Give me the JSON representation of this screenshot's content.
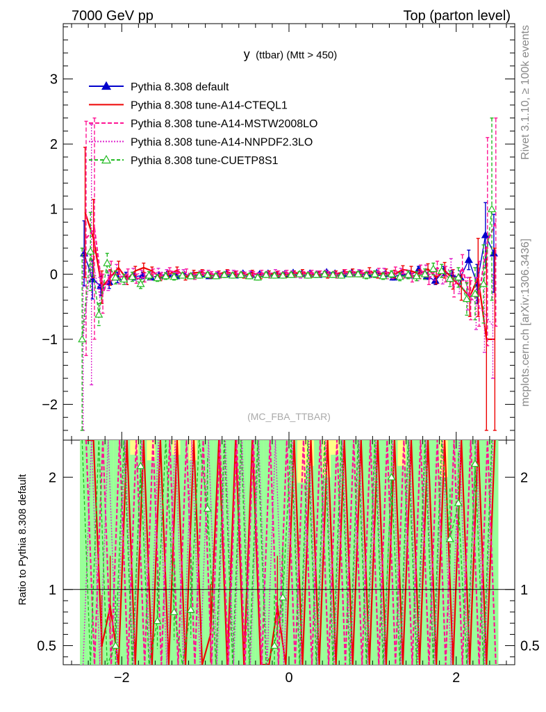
{
  "header": {
    "left": "7000 GeV pp",
    "right": "Top (parton level)"
  },
  "side_labels": {
    "rivet": "Rivet 3.1.10, ≥ 100k events",
    "mcplots": "mcplots.cern.ch [arXiv:1306.3436]"
  },
  "chart_data": [
    {
      "type": "line",
      "title": "y (ttbar) (Mtt > 450)",
      "title_main": "y",
      "title_sub": "(ttbar) (Mtt > 450)",
      "watermark": "(MC_FBA_TTBAR)",
      "xlim": [
        -2.7,
        2.7
      ],
      "ylim": [
        -2.55,
        3.85
      ],
      "x_ticks": [
        -2,
        0,
        2
      ],
      "x_tick_labels": [
        "−2",
        "0",
        "2"
      ],
      "y_ticks": [
        -2,
        -1,
        0,
        1,
        2,
        3
      ],
      "y_tick_labels": [
        "−2",
        "−1",
        "0",
        "1",
        "2",
        "3"
      ],
      "legend": {
        "position": "top-left",
        "entries": [
          {
            "label": "Pythia 8.308 default",
            "color": "#0000cc",
            "dash": "",
            "marker": "triangle-filled"
          },
          {
            "label": "Pythia 8.308 tune-A14-CTEQL1",
            "color": "#ee0000",
            "dash": "",
            "marker": "none"
          },
          {
            "label": "Pythia 8.308 tune-A14-MSTW2008LO",
            "color": "#ff1493",
            "dash": "6,3",
            "marker": "none"
          },
          {
            "label": "Pythia 8.308 tune-A14-NNPDF2.3LO",
            "color": "#dd22cc",
            "dash": "2,2",
            "marker": "none"
          },
          {
            "label": "Pythia 8.308 tune-CUETP8S1",
            "color": "#22bb22",
            "dash": "5,3",
            "marker": "triangle-open"
          }
        ]
      },
      "x": [
        -2.45,
        -2.35,
        -2.25,
        -2.15,
        -2.05,
        -1.95,
        -1.85,
        -1.75,
        -1.65,
        -1.55,
        -1.45,
        -1.35,
        -1.25,
        -1.15,
        -1.05,
        -0.95,
        -0.85,
        -0.75,
        -0.65,
        -0.55,
        -0.45,
        -0.35,
        -0.25,
        -0.15,
        -0.05,
        0.05,
        0.15,
        0.25,
        0.35,
        0.45,
        0.55,
        0.65,
        0.75,
        0.85,
        0.95,
        1.05,
        1.15,
        1.25,
        1.35,
        1.45,
        1.55,
        1.65,
        1.75,
        1.85,
        1.95,
        2.05,
        2.15,
        2.25,
        2.35,
        2.45
      ],
      "series": [
        {
          "name": "Pythia 8.308 default",
          "color": "#0000cc",
          "values": [
            0.32,
            -0.08,
            -0.18,
            -0.12,
            -0.05,
            -0.03,
            -0.04,
            -0.02,
            -0.05,
            -0.02,
            0.0,
            -0.03,
            -0.01,
            -0.02,
            0.0,
            -0.03,
            -0.01,
            0.0,
            -0.02,
            0.01,
            -0.01,
            0.0,
            0.01,
            -0.02,
            0.0,
            0.02,
            0.0,
            0.01,
            -0.01,
            0.03,
            0.01,
            0.0,
            0.02,
            0.01,
            -0.01,
            0.02,
            0.0,
            -0.05,
            0.01,
            -0.02,
            0.07,
            -0.03,
            -0.1,
            0.05,
            -0.02,
            -0.05,
            0.22,
            -0.15,
            0.6,
            0.32
          ],
          "errors": [
            0.5,
            0.3,
            0.15,
            0.1,
            0.08,
            0.06,
            0.05,
            0.05,
            0.04,
            0.04,
            0.04,
            0.04,
            0.03,
            0.03,
            0.03,
            0.03,
            0.03,
            0.03,
            0.03,
            0.03,
            0.03,
            0.03,
            0.03,
            0.03,
            0.03,
            0.03,
            0.03,
            0.03,
            0.03,
            0.03,
            0.03,
            0.03,
            0.03,
            0.03,
            0.03,
            0.03,
            0.04,
            0.04,
            0.04,
            0.04,
            0.05,
            0.05,
            0.06,
            0.07,
            0.08,
            0.1,
            0.15,
            0.3,
            0.5,
            0.6
          ]
        },
        {
          "name": "Pythia 8.308 tune-A14-CTEQL1",
          "color": "#ee0000",
          "values": [
            0.95,
            0.55,
            -0.2,
            -0.05,
            0.1,
            -0.08,
            0.05,
            0.1,
            0.05,
            -0.05,
            0.0,
            0.06,
            -0.05,
            0.02,
            0.03,
            -0.02,
            0.01,
            0.03,
            0.0,
            -0.02,
            0.02,
            -0.03,
            0.01,
            0.0,
            -0.01,
            0.01,
            0.03,
            -0.01,
            0.0,
            -0.02,
            0.01,
            0.03,
            0.04,
            0.0,
            0.05,
            -0.01,
            0.03,
            0.0,
            0.07,
            0.05,
            0.0,
            0.08,
            -0.05,
            0.06,
            -0.08,
            -0.2,
            -0.35,
            -0.05,
            -1.0,
            -1.0
          ],
          "errors": [
            1.0,
            0.6,
            0.25,
            0.12,
            0.1,
            0.08,
            0.07,
            0.07,
            0.06,
            0.05,
            0.05,
            0.05,
            0.04,
            0.04,
            0.04,
            0.04,
            0.04,
            0.04,
            0.04,
            0.04,
            0.04,
            0.04,
            0.04,
            0.04,
            0.04,
            0.04,
            0.04,
            0.04,
            0.04,
            0.04,
            0.04,
            0.04,
            0.04,
            0.04,
            0.05,
            0.05,
            0.05,
            0.06,
            0.06,
            0.07,
            0.07,
            0.08,
            0.1,
            0.12,
            0.15,
            0.2,
            0.3,
            0.6,
            1.4,
            1.4
          ]
        },
        {
          "name": "Pythia 8.308 tune-A14-MSTW2008LO",
          "color": "#ff1493",
          "values": [
            0.55,
            0.7,
            -0.3,
            0.05,
            -0.05,
            0.0,
            -0.07,
            -0.05,
            0.02,
            -0.03,
            0.05,
            0.02,
            0.03,
            -0.04,
            0.02,
            0.0,
            -0.02,
            0.02,
            0.01,
            -0.01,
            0.0,
            0.02,
            -0.02,
            0.01,
            0.02,
            -0.01,
            0.0,
            0.02,
            0.01,
            0.0,
            -0.02,
            0.03,
            0.0,
            0.02,
            0.0,
            0.04,
            -0.02,
            0.05,
            0.0,
            -0.05,
            0.07,
            -0.08,
            0.1,
            0.0,
            -0.2,
            0.1,
            -0.4,
            -0.3,
            0.5,
            0.8
          ],
          "errors": [
            1.8,
            1.7,
            0.3,
            0.15,
            0.1,
            0.08,
            0.07,
            0.07,
            0.06,
            0.05,
            0.05,
            0.05,
            0.05,
            0.04,
            0.04,
            0.04,
            0.04,
            0.04,
            0.04,
            0.04,
            0.04,
            0.04,
            0.04,
            0.04,
            0.04,
            0.04,
            0.04,
            0.04,
            0.04,
            0.04,
            0.04,
            0.04,
            0.04,
            0.04,
            0.05,
            0.05,
            0.05,
            0.06,
            0.06,
            0.07,
            0.07,
            0.08,
            0.1,
            0.12,
            0.15,
            0.2,
            0.3,
            0.5,
            1.6,
            1.6
          ]
        },
        {
          "name": "Pythia 8.308 tune-A14-NNPDF2.3LO",
          "color": "#dd22cc",
          "values": [
            -1.0,
            0.3,
            -0.35,
            -0.1,
            0.05,
            -0.08,
            0.02,
            0.0,
            -0.03,
            0.04,
            0.02,
            -0.02,
            0.03,
            -0.02,
            0.01,
            0.02,
            0.0,
            -0.01,
            0.02,
            0.0,
            0.01,
            -0.02,
            0.0,
            0.03,
            0.0,
            0.01,
            -0.02,
            0.0,
            0.01,
            0.02,
            0.0,
            -0.01,
            0.01,
            0.03,
            0.0,
            0.0,
            0.04,
            -0.02,
            0.03,
            0.0,
            -0.03,
            0.06,
            0.0,
            -0.05,
            0.12,
            -0.15,
            -0.3,
            -0.45,
            -0.6,
            -0.8
          ],
          "errors": [
            1.4,
            2.0,
            0.3,
            0.15,
            0.1,
            0.08,
            0.07,
            0.06,
            0.06,
            0.05,
            0.05,
            0.05,
            0.04,
            0.04,
            0.04,
            0.04,
            0.04,
            0.04,
            0.04,
            0.04,
            0.04,
            0.04,
            0.04,
            0.04,
            0.04,
            0.04,
            0.04,
            0.04,
            0.04,
            0.04,
            0.04,
            0.04,
            0.04,
            0.04,
            0.05,
            0.05,
            0.05,
            0.05,
            0.06,
            0.06,
            0.07,
            0.08,
            0.09,
            0.1,
            0.12,
            0.15,
            0.25,
            0.4,
            0.6,
            0.8
          ]
        },
        {
          "name": "Pythia 8.308 tune-CUETP8S1",
          "color": "#22bb22",
          "values": [
            -1.0,
            0.35,
            -0.62,
            0.17,
            -0.05,
            -0.08,
            -0.04,
            -0.15,
            -0.02,
            -0.06,
            -0.03,
            -0.04,
            -0.02,
            -0.03,
            -0.02,
            -0.01,
            -0.03,
            -0.01,
            -0.02,
            -0.01,
            -0.03,
            -0.05,
            -0.01,
            -0.02,
            -0.02,
            -0.01,
            0.0,
            -0.02,
            -0.01,
            0.0,
            -0.01,
            -0.02,
            0.0,
            0.0,
            -0.02,
            0.0,
            -0.03,
            0.0,
            -0.04,
            -0.01,
            -0.03,
            0.0,
            0.08,
            0.05,
            -0.07,
            -0.05,
            -0.38,
            -0.3,
            -0.15,
            1.0
          ],
          "errors": [
            1.4,
            0.6,
            0.17,
            0.15,
            0.1,
            0.08,
            0.07,
            0.07,
            0.06,
            0.05,
            0.05,
            0.05,
            0.04,
            0.04,
            0.04,
            0.04,
            0.04,
            0.04,
            0.04,
            0.04,
            0.04,
            0.04,
            0.04,
            0.04,
            0.04,
            0.04,
            0.04,
            0.04,
            0.04,
            0.04,
            0.04,
            0.04,
            0.04,
            0.04,
            0.05,
            0.05,
            0.05,
            0.05,
            0.06,
            0.06,
            0.07,
            0.08,
            0.09,
            0.1,
            0.12,
            0.15,
            0.25,
            0.4,
            0.6,
            1.4
          ]
        }
      ]
    },
    {
      "type": "line",
      "ylabel": "Ratio to Pythia 8.308 default",
      "xlim": [
        -2.7,
        2.7
      ],
      "ylim": [
        0.33,
        2.33
      ],
      "y_ticks": [
        0.5,
        1,
        2
      ],
      "y_tick_labels": [
        "0.5",
        "1",
        "2"
      ],
      "x_ticks": [
        -2,
        0,
        2
      ],
      "x_tick_labels": [
        "−2",
        "0",
        "2"
      ],
      "reference_line": 1,
      "band_colors": {
        "outer": "#ffff88",
        "inner": "#99ff99"
      },
      "band_upper_yellow": [
        2.33,
        2.33,
        2.33,
        2.33,
        2.33,
        2.33,
        2.33,
        2.33,
        2.33,
        2.33,
        2.33,
        2.33,
        2.33,
        2.33,
        2.33,
        2.33,
        2.33,
        2.33,
        2.33,
        2.33,
        2.33,
        2.33,
        2.33,
        2.33,
        2.33,
        2.33,
        2.33,
        2.33,
        2.33,
        2.33,
        2.33,
        2.33,
        2.33,
        2.33,
        2.33,
        2.33,
        2.33,
        2.33,
        2.33,
        2.33,
        2.33,
        2.33,
        2.33,
        2.33,
        2.33,
        2.33,
        2.33,
        2.33,
        2.33,
        2.33
      ],
      "band_upper_green": [
        2.33,
        2.33,
        2.33,
        2.33,
        2.33,
        2.33,
        2.2,
        2.33,
        2.15,
        2.33,
        2.33,
        2.2,
        2.33,
        2.15,
        2.33,
        2.33,
        2.33,
        2.33,
        2.33,
        2.33,
        2.33,
        2.33,
        2.33,
        2.33,
        2.33,
        2.33,
        1.95,
        2.1,
        2.33,
        2.0,
        2.2,
        2.33,
        2.33,
        2.33,
        2.33,
        2.33,
        2.33,
        2.33,
        2.1,
        2.33,
        2.33,
        2.33,
        2.33,
        2.0,
        2.33,
        2.33,
        2.33,
        2.33,
        2.33,
        2.33
      ],
      "series": [
        {
          "name": "Pythia 8.308 tune-A14-CTEQL1",
          "color": "#ee0000",
          "values": [
            2.33,
            2.33,
            0.5,
            0.85,
            0.33,
            2.33,
            0.33,
            2.33,
            0.33,
            2.33,
            0.33,
            2.33,
            0.33,
            2.33,
            0.33,
            0.6,
            2.33,
            0.33,
            2.33,
            0.33,
            2.33,
            0.33,
            0.33,
            0.85,
            0.33,
            2.33,
            0.33,
            2.33,
            0.33,
            2.33,
            0.33,
            2.33,
            0.33,
            2.33,
            0.33,
            2.33,
            0.33,
            2.33,
            0.33,
            2.33,
            0.33,
            2.33,
            0.33,
            2.33,
            0.33,
            2.33,
            0.33,
            2.33,
            0.33,
            2.33
          ]
        },
        {
          "name": "Pythia 8.308 tune-A14-MSTW2008LO",
          "color": "#ff1493",
          "values": [
            2.33,
            0.33,
            2.33,
            0.33,
            2.33,
            0.33,
            2.33,
            0.33,
            2.33,
            0.33,
            2.33,
            0.33,
            2.33,
            0.33,
            2.33,
            0.33,
            2.33,
            0.33,
            2.33,
            0.33,
            2.33,
            0.33,
            2.33,
            0.33,
            2.33,
            0.33,
            2.33,
            0.33,
            2.33,
            0.33,
            2.33,
            0.33,
            2.33,
            0.33,
            2.33,
            0.33,
            2.33,
            0.33,
            2.33,
            0.33,
            2.33,
            0.33,
            2.33,
            0.33,
            2.33,
            0.33,
            2.33,
            0.33,
            2.33,
            0.33
          ]
        },
        {
          "name": "Pythia 8.308 tune-A14-NNPDF2.3LO",
          "color": "#dd22cc",
          "values": [
            0.33,
            2.33,
            0.33,
            2.33,
            0.33,
            2.33,
            0.33,
            2.33,
            0.33,
            2.33,
            0.33,
            2.33,
            0.33,
            2.33,
            0.33,
            2.33,
            0.33,
            2.33,
            0.33,
            2.33,
            0.33,
            2.33,
            0.33,
            2.33,
            0.33,
            2.33,
            0.33,
            2.33,
            0.33,
            2.33,
            0.33,
            2.33,
            0.33,
            2.33,
            0.33,
            2.33,
            0.33,
            2.33,
            0.33,
            2.33,
            0.33,
            2.33,
            0.33,
            2.33,
            0.33,
            2.33,
            0.33,
            2.33,
            0.33,
            2.33
          ]
        },
        {
          "name": "Pythia 8.308 tune-CUETP8S1",
          "color": "#22bb22",
          "values": [
            2.33,
            0.33,
            2.33,
            0.33,
            0.5,
            2.33,
            0.33,
            2.1,
            0.33,
            0.72,
            2.33,
            0.8,
            0.33,
            0.82,
            2.33,
            1.72,
            0.33,
            2.33,
            0.33,
            2.33,
            0.33,
            2.33,
            0.33,
            0.5,
            0.93,
            2.33,
            0.33,
            2.33,
            0.33,
            2.33,
            0.33,
            2.33,
            0.33,
            2.33,
            0.33,
            2.33,
            0.33,
            2.0,
            0.33,
            2.33,
            0.33,
            2.33,
            0.33,
            2.33,
            1.45,
            1.77,
            0.33,
            2.12,
            0.33,
            2.33
          ]
        }
      ]
    }
  ]
}
